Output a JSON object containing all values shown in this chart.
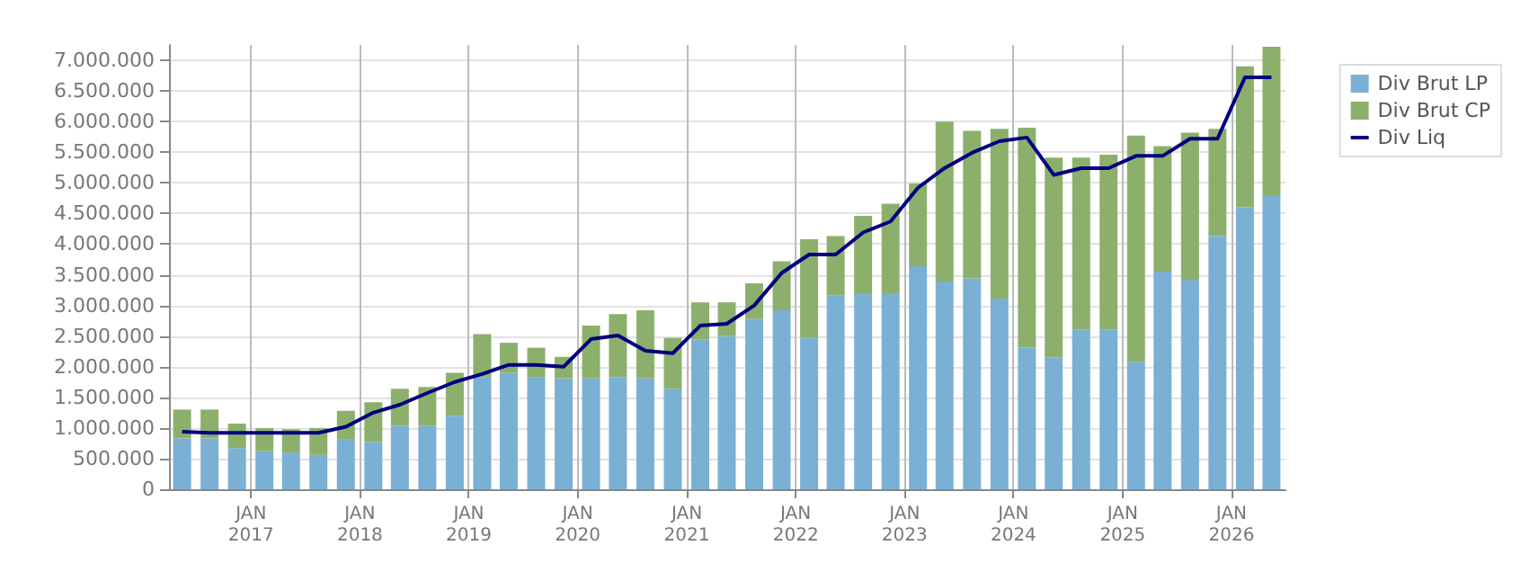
{
  "chart_data": {
    "type": "bar",
    "stacked": true,
    "x": [
      "2016-05-15",
      "2016-08-15",
      "2016-11-15",
      "2017-02-15",
      "2017-05-15",
      "2017-08-15",
      "2017-11-15",
      "2018-02-15",
      "2018-05-15",
      "2018-08-15",
      "2018-11-15",
      "2019-02-15",
      "2019-05-15",
      "2019-08-15",
      "2019-11-15",
      "2020-02-15",
      "2020-05-15",
      "2020-08-15",
      "2020-11-15",
      "2021-02-15",
      "2021-05-15",
      "2021-08-15",
      "2021-11-15",
      "2022-02-15",
      "2022-05-15",
      "2022-08-15",
      "2022-11-15",
      "2023-02-15",
      "2023-05-15",
      "2023-08-15",
      "2023-11-15",
      "2024-02-15",
      "2024-05-15",
      "2024-08-15",
      "2024-11-15",
      "2025-02-15",
      "2025-05-15",
      "2025-08-15",
      "2025-11-15",
      "2026-02-15",
      "2026-05-15"
    ],
    "series": [
      {
        "name": "Div Brut LP",
        "color": "#7ab0d4",
        "values": [
          830000,
          830000,
          670000,
          620000,
          600000,
          560000,
          810000,
          770000,
          1040000,
          1040000,
          1200000,
          1830000,
          1900000,
          1830000,
          1810000,
          1810000,
          1830000,
          1810000,
          1640000,
          2440000,
          2500000,
          2780000,
          2920000,
          2470000,
          3160000,
          3200000,
          3200000,
          3640000,
          3390000,
          3440000,
          3110000,
          2310000,
          2150000,
          2610000,
          2610000,
          2080000,
          3550000,
          3420000,
          4130000,
          4600000,
          4800000
        ]
      },
      {
        "name": "Div Brut CP",
        "color": "#8cb06c",
        "values": [
          470000,
          470000,
          400000,
          380000,
          380000,
          440000,
          470000,
          650000,
          600000,
          630000,
          700000,
          700000,
          490000,
          480000,
          350000,
          860000,
          1030000,
          1110000,
          830000,
          610000,
          550000,
          580000,
          800000,
          1610000,
          970000,
          1260000,
          1460000,
          1350000,
          2610000,
          2410000,
          2770000,
          3590000,
          3260000,
          2800000,
          2850000,
          3690000,
          2050000,
          2400000,
          1750000,
          2300000,
          2420000
        ]
      },
      {
        "name": "Div Liq",
        "type": "line",
        "color": "#000080",
        "values": [
          940000,
          920000,
          920000,
          920000,
          920000,
          920000,
          1020000,
          1250000,
          1380000,
          1570000,
          1750000,
          1880000,
          2030000,
          2030000,
          2000000,
          2450000,
          2510000,
          2260000,
          2220000,
          2670000,
          2700000,
          3000000,
          3530000,
          3830000,
          3830000,
          4190000,
          4370000,
          4920000,
          5240000,
          5490000,
          5680000,
          5740000,
          5130000,
          5240000,
          5240000,
          5440000,
          5440000,
          5720000,
          5720000,
          6720000,
          6720000
        ]
      }
    ],
    "xlim": [
      "2016-04-01",
      "2026-07-01"
    ],
    "xticks": [
      {
        "value": "2017-01-01",
        "label": "JAN\n2017"
      },
      {
        "value": "2018-01-01",
        "label": "JAN\n2018"
      },
      {
        "value": "2019-01-01",
        "label": "JAN\n2019"
      },
      {
        "value": "2020-01-01",
        "label": "JAN\n2020"
      },
      {
        "value": "2021-01-01",
        "label": "JAN\n2021"
      },
      {
        "value": "2022-01-01",
        "label": "JAN\n2022"
      },
      {
        "value": "2023-01-01",
        "label": "JAN\n2023"
      },
      {
        "value": "2024-01-01",
        "label": "JAN\n2024"
      },
      {
        "value": "2025-01-01",
        "label": "JAN\n2025"
      },
      {
        "value": "2026-01-01",
        "label": "JAN\n2026"
      }
    ],
    "ylim": [
      0,
      7250000
    ],
    "yticks": [
      0,
      {
        "value": 500000,
        "label": "500.000"
      },
      {
        "value": 1000000,
        "label": "1.000.000"
      },
      {
        "value": 1500000,
        "label": "1.500.000"
      },
      {
        "value": 2000000,
        "label": "2.000.000"
      },
      {
        "value": 2500000,
        "label": "2.500.000"
      },
      {
        "value": 3000000,
        "label": "3.000.000"
      },
      {
        "value": 3500000,
        "label": "3.500.000"
      },
      {
        "value": 4000000,
        "label": "4.000.000"
      },
      {
        "value": 4500000,
        "label": "4.500.000"
      },
      {
        "value": 5000000,
        "label": "5.000.000"
      },
      {
        "value": 5500000,
        "label": "5.500.000"
      },
      {
        "value": 6000000,
        "label": "6.000.000"
      },
      {
        "value": 6500000,
        "label": "6.500.000"
      },
      {
        "value": 7000000,
        "label": "7.000.000"
      }
    ],
    "grid": true,
    "legend": "top right",
    "line_style": "solid",
    "marker": "none"
  }
}
